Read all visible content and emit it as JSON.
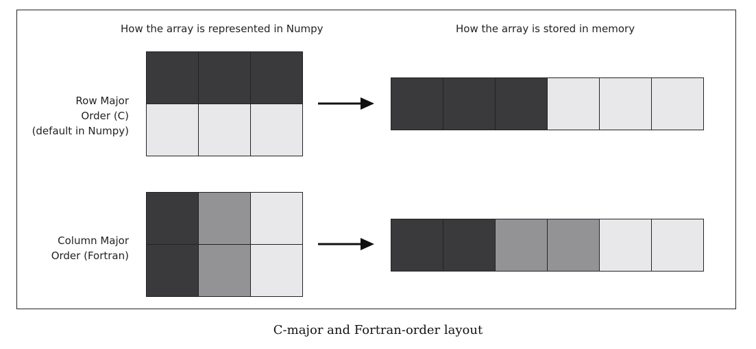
{
  "headers": {
    "numpy": "How the array is represented in Numpy",
    "memory": "How the array is stored in memory"
  },
  "rows": [
    {
      "label_lines": [
        "Row Major",
        "Order (C)",
        "(default in Numpy)"
      ],
      "grid_rows": 2,
      "grid_cols": 3,
      "grid_colors": [
        "dark",
        "dark",
        "dark",
        "light",
        "light",
        "light"
      ],
      "memory_colors": [
        "dark",
        "dark",
        "dark",
        "light",
        "light",
        "light"
      ]
    },
    {
      "label_lines": [
        "Column Major",
        "Order (Fortran)"
      ],
      "grid_rows": 2,
      "grid_cols": 3,
      "grid_colors": [
        "dark",
        "mid",
        "light",
        "dark",
        "mid",
        "light"
      ],
      "memory_colors": [
        "dark",
        "dark",
        "mid",
        "mid",
        "light",
        "light"
      ]
    }
  ],
  "colors": {
    "dark": "#3a3a3c",
    "mid": "#939396",
    "light": "#e8e8ea",
    "line": "#222222"
  },
  "caption": "C-major and Fortran-order layout"
}
